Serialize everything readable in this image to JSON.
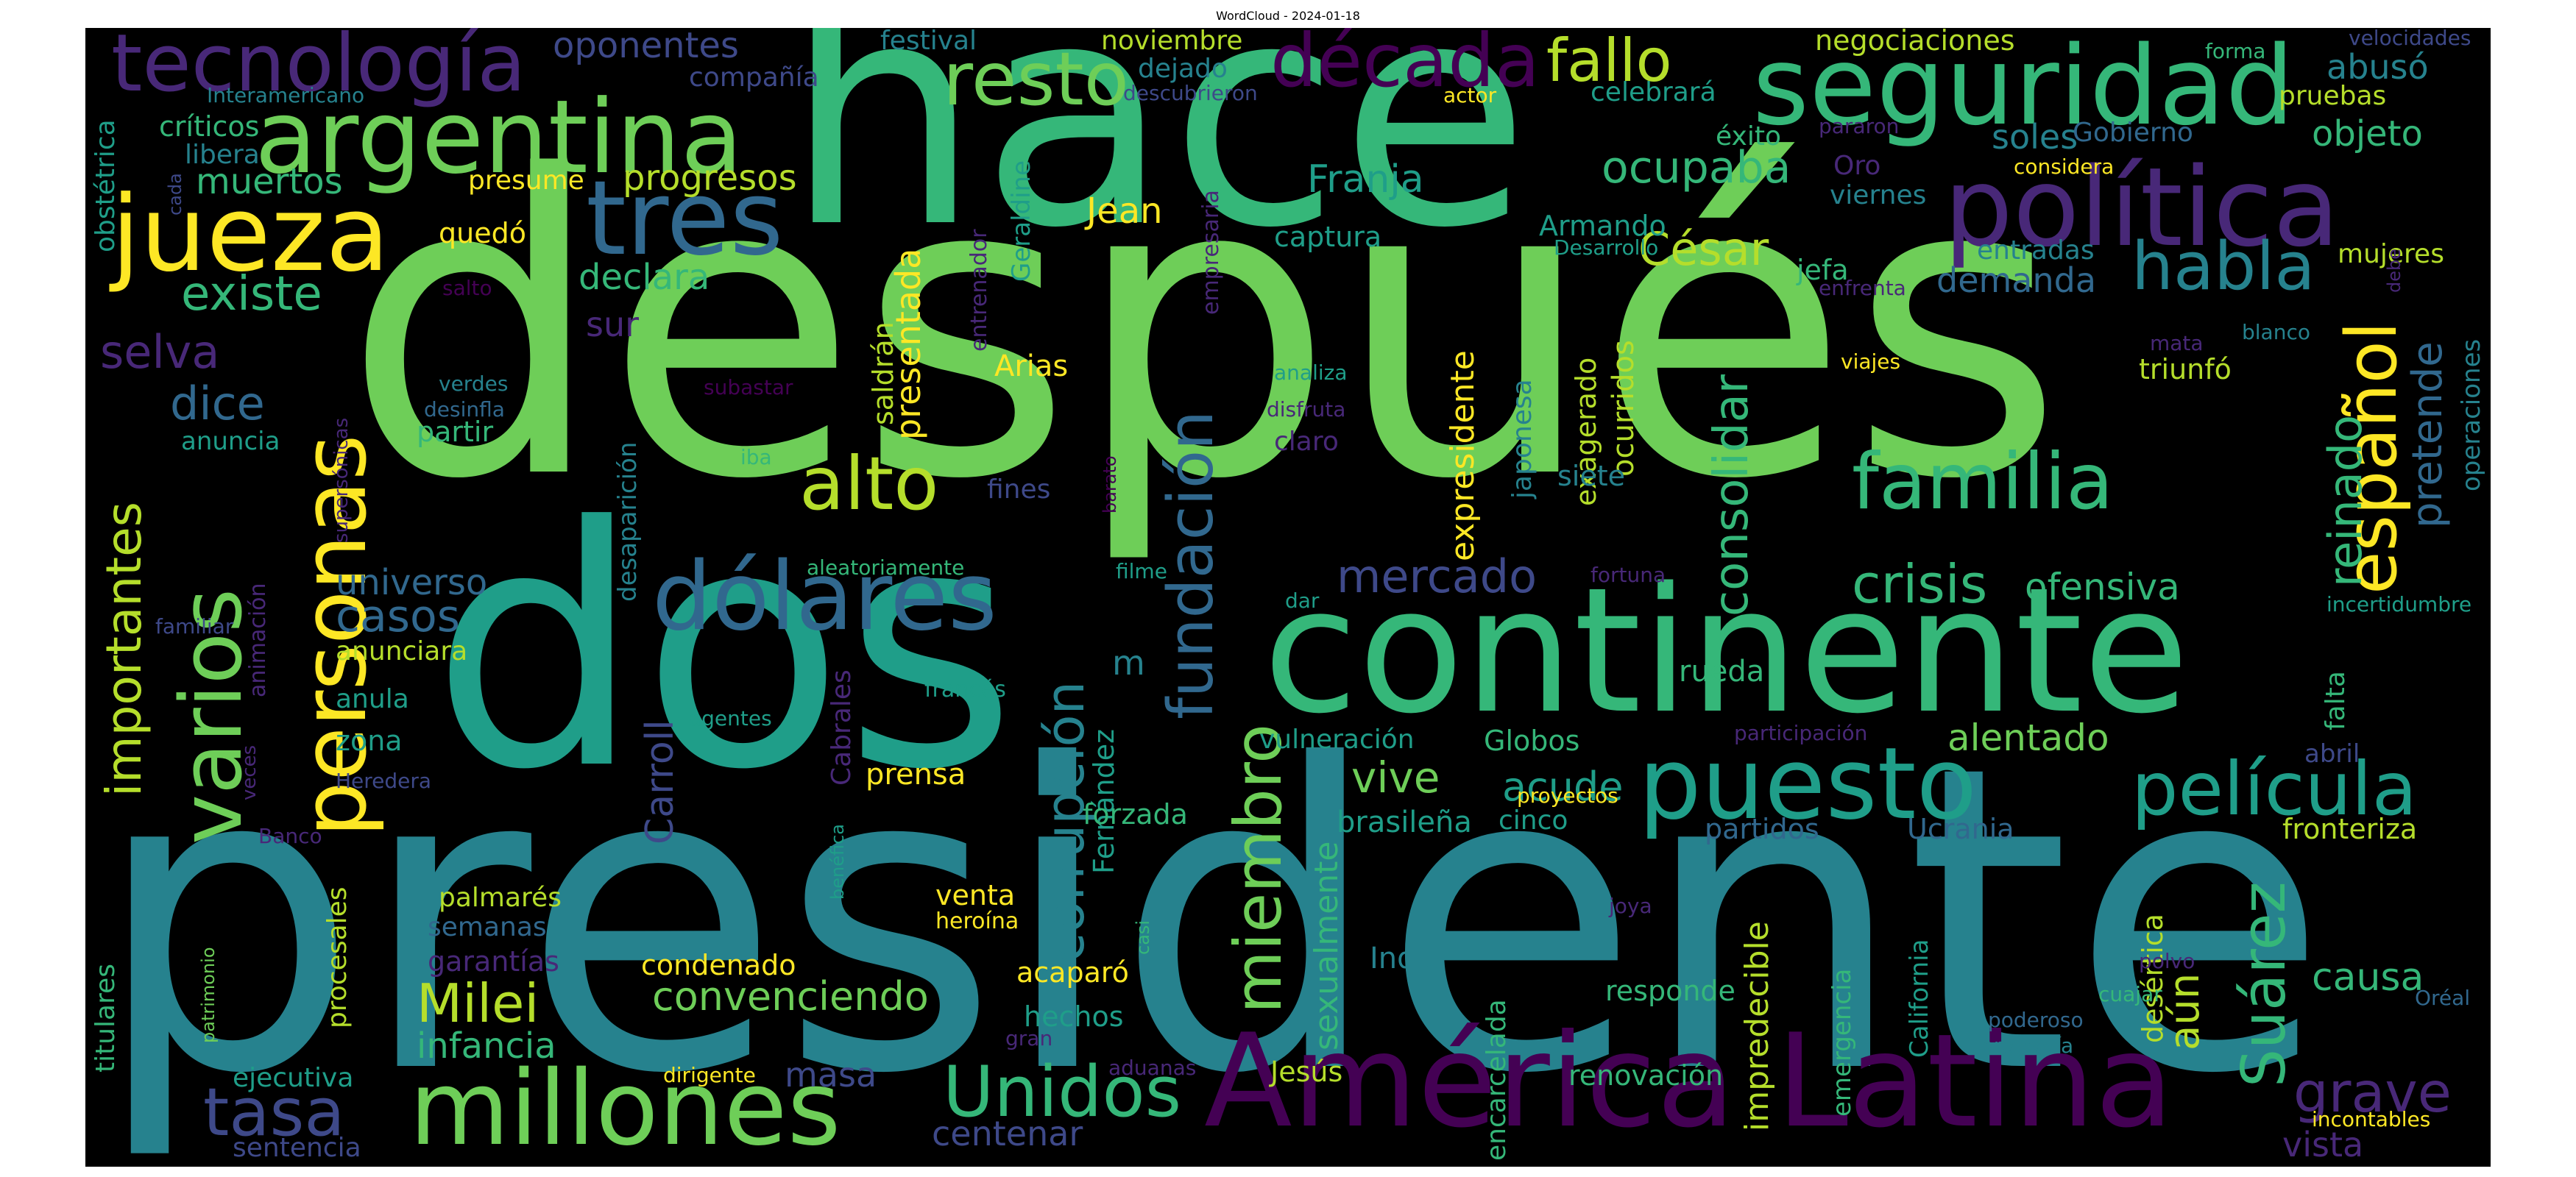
{
  "title": "WordCloud - 2024-01-18",
  "words": {
    "despues": "después",
    "presidente": "presidente",
    "hace": "hace",
    "dos": "dos",
    "continente": "continente",
    "america_latina": "América Latina",
    "seguridad": "seguridad",
    "politica": "política",
    "argentina": "argentina",
    "jueza": "jueza",
    "tecnologia": "tecnología",
    "decada": "década",
    "personas": "personas",
    "varios": "varios",
    "millones": "millones",
    "tres": "tres",
    "dolares": "dólares",
    "puesto": "puesto",
    "pelicula": "película",
    "familia": "familia",
    "unidos": "Unidos",
    "resto": "resto",
    "fallo": "fallo",
    "habla": "habla",
    "alto": "alto",
    "espanol": "español",
    "fundacion": "fundación",
    "crisis": "crisis",
    "miembro": "miembro",
    "tasa": "tasa",
    "milei": "Milei",
    "suarez": "Suárez",
    "existe": "existe",
    "grave": "grave",
    "cesar": "César",
    "ocupaba": "ocupaba",
    "consolidar": "consolidar",
    "corrupcion": "corrupción",
    "mercado": "mercado",
    "reinado": "reinado",
    "importantes": "importantes",
    "muertos": "muertos",
    "progresos": "progresos",
    "franja": "Franja",
    "jean": "Jean",
    "abuso": "abusó",
    "objeto": "objeto",
    "selva": "selva",
    "dice": "dice",
    "casos": "casos",
    "universo": "universo",
    "ofensiva": "ofensiva",
    "alentado": "alentado",
    "vive": "vive",
    "acude": "acude",
    "convenciendo": "convenciendo",
    "infancia": "infancia",
    "causa": "causa",
    "pretende": "pretende",
    "demanda": "demanda",
    "soles": "soles",
    "oponentes": "oponentes",
    "negociaciones": "negociaciones",
    "festival": "festival",
    "noviembre": "noviembre",
    "dejado": "dejado",
    "compania": "compañía",
    "criticos": "críticos",
    "libera": "libera",
    "presume": "presume",
    "quedo": "quedó",
    "declara": "declara",
    "anuncia": "anuncia",
    "partir": "partir",
    "anunciara": "anunciara",
    "anula": "anula",
    "zona": "zona",
    "sur": "sur",
    "presentada": "presentada",
    "saldran": "saldrán",
    "arias": "Arias",
    "fines": "fines",
    "claro": "claro",
    "captura": "captura",
    "armando": "Armando",
    "japonesa": "japonesa",
    "exagerado": "exagerado",
    "ocurridos": "ocurridos",
    "siete": "siete",
    "expresidente": "expresidente",
    "rueda": "rueda",
    "jefa": "jefa",
    "viernes": "viernes",
    "oro": "Oro",
    "exito": "éxito",
    "entradas": "entradas",
    "mujeres": "mujeres",
    "triunfo": "triunfó",
    "operaciones": "operaciones",
    "falta": "falta",
    "abril": "abril",
    "fronteriza": "fronteriza",
    "ucrania": "Ucrania",
    "partidos": "partidos",
    "sexualmente": "sexualmente",
    "impredecible": "impredecible",
    "aun": "aún",
    "desertica": "desértica",
    "california": "California",
    "emergencia": "emergencia",
    "encarcelada": "encarcelada",
    "renovacion": "renovación",
    "responde": "responde",
    "indio": "Indio",
    "carroll": "Carroll",
    "fernandez": "Fernández",
    "cabrales": "Cabrales",
    "prensa": "prensa",
    "palmares": "palmarés",
    "semanas": "semanas",
    "garantias": "garantías",
    "procesales": "procesales",
    "titulares": "titulares",
    "condenado": "condenado",
    "venta": "venta",
    "heroina": "heroína",
    "acaparo": "acaparó",
    "hechos": "hechos",
    "masa": "masa",
    "centenar": "centenar",
    "ejecutiva": "ejecutiva",
    "sentencia": "sentencia",
    "jesus": "Jesús",
    "vista": "vista",
    "incontables": "incontables",
    "dirigente": "dirigente",
    "aduanas": "aduanas",
    "gran": "gran",
    "forzada": "forzada",
    "brasilena": "brasileña",
    "vulneracion": "vulneración",
    "globos": "Globos",
    "proyectos": "proyectos",
    "cinco": "cinco",
    "desaparicion": "desaparición",
    "aleatoriamente": "aleatoriamente",
    "filme": "filme",
    "dar": "dar",
    "fortuna": "fortuna",
    "frances": "francés",
    "agentes": "agentes",
    "heredera": "Heredera",
    "familiar": "familiar",
    "animacion": "animación",
    "banco": "Banco",
    "veces": "veces",
    "supersonicas": "supersónicas",
    "verdes": "verdes",
    "desinfla": "desinfla",
    "subastar": "subastar",
    "iba": "iba",
    "barato": "barato",
    "analiza": "analiza",
    "disfruta": "disfruta",
    "desarrollo": "Desarrollo",
    "enfrenta": "enfrenta",
    "viajes": "viajes",
    "mata": "mata",
    "blanco": "blanco",
    "debe": "debe",
    "incertidumbre": "incertidumbre",
    "participacion": "participación",
    "joya": "joya",
    "poderoso": "poderoso",
    "prometia": "prometía",
    "polvo": "polvo",
    "cuajar": "cuajar",
    "oreal": "Oréal",
    "obstetrica": "obstétrica",
    "interamericano": "Interamericano",
    "cada": "cada",
    "salto": "salto",
    "descubrieron": "descubrieron",
    "actor": "actor",
    "celebrara": "celebrará",
    "pararon": "pararon",
    "gobierno": "Gobierno",
    "considera": "considera",
    "pruebas": "pruebas",
    "forma": "forma",
    "velocidades": "velocidades",
    "empresaria": "empresaria",
    "entrenador": "entrenador",
    "geraldine": "Geraldine",
    "casi": "casi",
    "benefica": "benéfica",
    "patrimonio": "patrimonio",
    "m": "m",
    "l": "L"
  }
}
